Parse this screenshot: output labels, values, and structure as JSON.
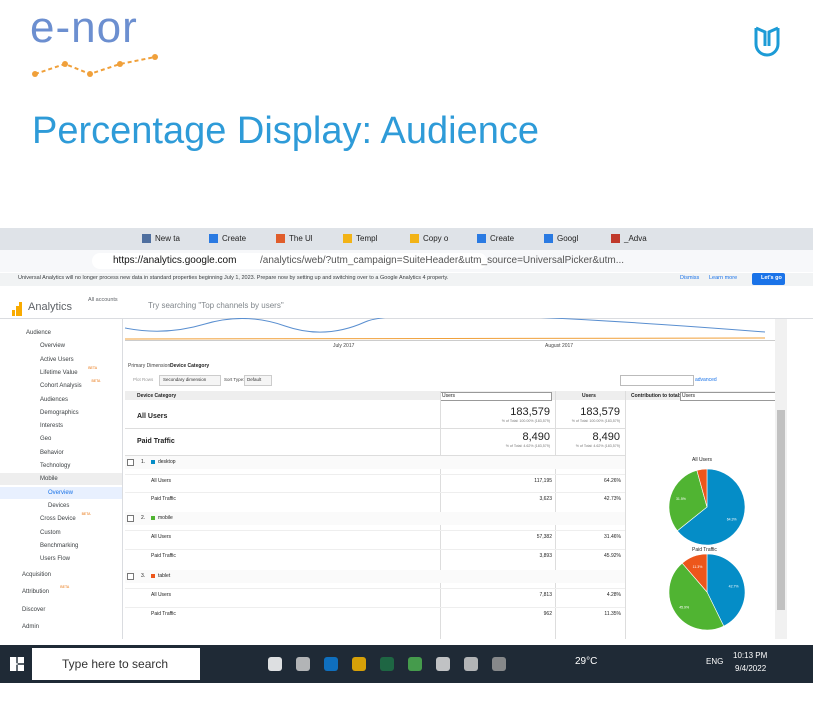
{
  "header": {
    "brand": "e-nor",
    "title": "Percentage Display:  Audience"
  },
  "browser": {
    "tabs": [
      "New ta",
      "Create",
      "The Ul",
      "Templ",
      "Copy o",
      "Create",
      "Googl",
      "_Adva"
    ],
    "url_host": "https://analytics.google.com",
    "url_path": "/analytics/web/?utm_campaign=SuiteHeader&utm_source=UniversalPicker&utm..."
  },
  "banner": {
    "text": "Universal Analytics will no longer process new data in standard properties beginning July 1, 2023. Prepare now by setting up and switching over to a Google Analytics 4 property.",
    "dismiss": "Dismiss",
    "learn": "Learn more",
    "cta": "Let's go"
  },
  "ga": {
    "product": "Analytics",
    "accounts": "All accounts",
    "search": "Try searching \"Top channels by users\""
  },
  "sidebar": [
    {
      "label": "Audience",
      "level": 0
    },
    {
      "label": "Overview",
      "level": 1
    },
    {
      "label": "Active Users",
      "level": 1
    },
    {
      "label": "Lifetime Value",
      "level": 1,
      "badge": "BETA"
    },
    {
      "label": "Cohort Analysis",
      "level": 1,
      "badge": "BETA"
    },
    {
      "label": "Audiences",
      "level": 1
    },
    {
      "label": "Demographics",
      "level": 1
    },
    {
      "label": "Interests",
      "level": 1
    },
    {
      "label": "Geo",
      "level": 1
    },
    {
      "label": "Behavior",
      "level": 1
    },
    {
      "label": "Technology",
      "level": 1
    },
    {
      "label": "Mobile",
      "level": 1
    },
    {
      "label": "Overview",
      "level": 2,
      "active": true
    },
    {
      "label": "Devices",
      "level": 2
    },
    {
      "label": "Cross Device",
      "level": 1,
      "badge": "BETA"
    },
    {
      "label": "Custom",
      "level": 1
    },
    {
      "label": "Benchmarking",
      "level": 1
    },
    {
      "label": "Users Flow",
      "level": 1
    },
    {
      "label": "Acquisition",
      "level": 0
    },
    {
      "label": "Attribution",
      "level": 0,
      "badge": "BETA"
    },
    {
      "label": "Discover",
      "level": 0
    },
    {
      "label": "Admin",
      "level": 0
    }
  ],
  "timeline": {
    "labels": [
      "July 2017",
      "August 2017"
    ]
  },
  "controls": {
    "primary_label": "Primary Dimension:",
    "primary_value": "Device Category",
    "plot_rows": "Plot Rows",
    "secondary": "Secondary dimension",
    "sort_label": "Sort Type:",
    "sort_value": "Default",
    "advanced": "advanced"
  },
  "table": {
    "headers": [
      "Device Category",
      "Users",
      "Users"
    ],
    "contribution_label": "Contribution to total:",
    "contribution_metric": "Users",
    "totals": [
      {
        "label": "All Users",
        "value": "183,579",
        "note": "% of Total: 100.00% (183,579)",
        "value2": "183,579",
        "note2": "% of Total: 100.00% (183,579)"
      },
      {
        "label": "Paid Traffic",
        "value": "8,490",
        "note": "% of Total: 4.62% (183,579)",
        "value2": "8,490",
        "note2": "% of Total: 4.62% (183,579)"
      }
    ],
    "groups": [
      {
        "index": "1.",
        "name": "desktop",
        "color": "#058dc7",
        "rows": [
          {
            "segment": "All Users",
            "users": "117,195",
            "percent": "64.26%"
          },
          {
            "segment": "Paid Traffic",
            "users": "3,623",
            "percent": "42.73%"
          }
        ]
      },
      {
        "index": "2.",
        "name": "mobile",
        "color": "#50b432",
        "rows": [
          {
            "segment": "All Users",
            "users": "57,382",
            "percent": "31.46%"
          },
          {
            "segment": "Paid Traffic",
            "users": "3,893",
            "percent": "45.92%"
          }
        ]
      },
      {
        "index": "3.",
        "name": "tablet",
        "color": "#ed561b",
        "rows": [
          {
            "segment": "All Users",
            "users": "7,813",
            "percent": "4.28%"
          },
          {
            "segment": "Paid Traffic",
            "users": "962",
            "percent": "11.35%"
          }
        ]
      }
    ]
  },
  "pies": [
    {
      "title": "All Users",
      "values": [
        64.3,
        31.5,
        4.3
      ],
      "value_labels": [
        "64.3%",
        "31.5%",
        null
      ],
      "colors": [
        "#058dc7",
        "#50b432",
        "#ed561b"
      ]
    },
    {
      "title": "Paid Traffic",
      "values": [
        42.7,
        45.9,
        11.3
      ],
      "value_labels": [
        "42.7%",
        "45.9%",
        "11.3%"
      ],
      "colors": [
        "#058dc7",
        "#50b432",
        "#ed561b"
      ]
    }
  ],
  "taskbar": {
    "search": "Type here to search",
    "weather": "29°C",
    "lang": "ENG",
    "time": "10:13 PM",
    "date": "9/4/2022"
  }
}
